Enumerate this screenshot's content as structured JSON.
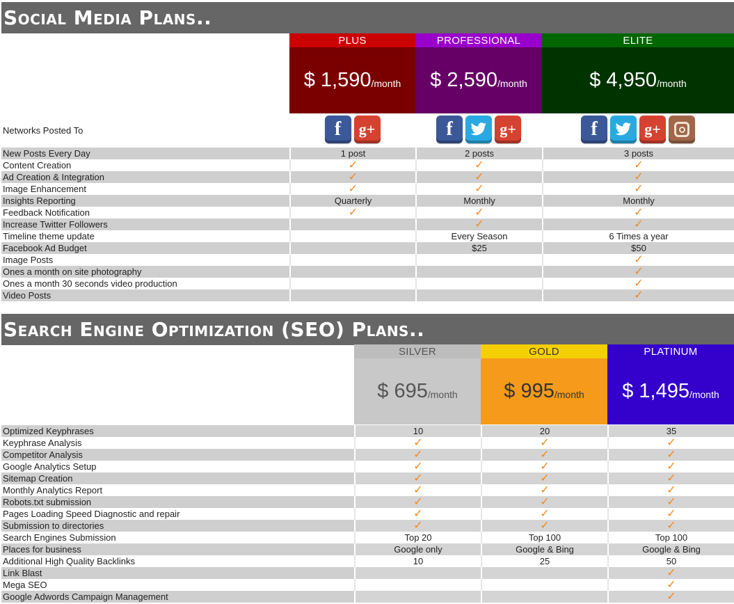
{
  "social": {
    "title": "Social Media Plans..",
    "plans": [
      {
        "name": "PLUS",
        "price": "$ 1,590",
        "unit": "/month",
        "name_bg": "#cc0000",
        "price_bg": "#7a0000"
      },
      {
        "name": "PROFESSIONAL",
        "price": "$ 2,590",
        "unit": "/month",
        "name_bg": "#9900cc",
        "price_bg": "#660066"
      },
      {
        "name": "ELITE",
        "price": "$ 4,950",
        "unit": "/month",
        "name_bg": "#006600",
        "price_bg": "#003300"
      }
    ],
    "networks_label": "Networks Posted To",
    "networks": [
      [
        "facebook-icon",
        "google-plus-icon"
      ],
      [
        "facebook-icon",
        "twitter-icon",
        "google-plus-icon"
      ],
      [
        "facebook-icon",
        "twitter-icon",
        "google-plus-icon",
        "instagram-icon"
      ]
    ],
    "rows": [
      {
        "label": "New Posts Every Day",
        "values": [
          "1 post",
          "2 posts",
          "3 posts"
        ]
      },
      {
        "label": "Content Creation",
        "values": [
          "✓",
          "✓",
          "✓"
        ]
      },
      {
        "label": "Ad Creation & Integration",
        "values": [
          "✓",
          "✓",
          "✓"
        ]
      },
      {
        "label": "Image Enhancement",
        "values": [
          "✓",
          "✓",
          "✓"
        ]
      },
      {
        "label": "Insights Reporting",
        "values": [
          "Quarterly",
          "Monthly",
          "Monthly"
        ]
      },
      {
        "label": "Feedback Notification",
        "values": [
          "✓",
          "✓",
          "✓"
        ]
      },
      {
        "label": "Increase Twitter Followers",
        "values": [
          "",
          "✓",
          "✓"
        ]
      },
      {
        "label": "Timeline theme update",
        "values": [
          "",
          "Every Season",
          "6 Times a year"
        ]
      },
      {
        "label": "Facebook Ad Budget",
        "values": [
          "",
          "$25",
          "$50"
        ]
      },
      {
        "label": "Image Posts",
        "values": [
          "",
          "",
          "✓"
        ]
      },
      {
        "label": "Ones a month on site photography",
        "values": [
          "",
          "",
          "✓"
        ]
      },
      {
        "label": "Ones a month 30 seconds video production",
        "values": [
          "",
          "",
          "✓"
        ]
      },
      {
        "label": "Video Posts",
        "values": [
          "",
          "",
          "✓"
        ]
      }
    ]
  },
  "seo": {
    "title": "Search Engine Optimization (SEO) Plans..",
    "plans": [
      {
        "name": "SILVER",
        "price": "$ 695",
        "unit": "/month",
        "name_bg": "#bdbdbd",
        "price_bg": "#c8c8c8",
        "fg": "#555555"
      },
      {
        "name": "GOLD",
        "price": "$ 995",
        "unit": "/month",
        "name_bg": "#f5d000",
        "price_bg": "#f59a1a",
        "fg": "#333333"
      },
      {
        "name": "PLATINUM",
        "price": "$ 1,495",
        "unit": "/month",
        "name_bg": "#3300cc",
        "price_bg": "#3300cc",
        "fg": "#ffffff"
      }
    ],
    "rows": [
      {
        "label": "Optimized Keyphrases",
        "values": [
          "10",
          "20",
          "35"
        ]
      },
      {
        "label": "Keyphrase Analysis",
        "values": [
          "✓",
          "✓",
          "✓"
        ]
      },
      {
        "label": "Competitor Analysis",
        "values": [
          "✓",
          "✓",
          "✓"
        ]
      },
      {
        "label": "Google Analytics Setup",
        "values": [
          "✓",
          "✓",
          "✓"
        ]
      },
      {
        "label": "Sitemap Creation",
        "values": [
          "✓",
          "✓",
          "✓"
        ]
      },
      {
        "label": "Monthly Analytics Report",
        "values": [
          "✓",
          "✓",
          "✓"
        ]
      },
      {
        "label": "Robots.txt submission",
        "values": [
          "✓",
          "✓",
          "✓"
        ]
      },
      {
        "label": "Pages Loading Speed Diagnostic and repair",
        "values": [
          "✓",
          "✓",
          "✓"
        ]
      },
      {
        "label": "Submission to directories",
        "values": [
          "✓",
          "✓",
          "✓"
        ]
      },
      {
        "label": "Search Engines Submission",
        "values": [
          "Top 20",
          "Top 100",
          "Top 100"
        ]
      },
      {
        "label": "Places for business",
        "values": [
          "Google only",
          "Google & Bing",
          "Google & Bing"
        ]
      },
      {
        "label": "Additional High Quality Backlinks",
        "values": [
          "10",
          "25",
          "50"
        ]
      },
      {
        "label": "Link Blast",
        "values": [
          "",
          "",
          "✓"
        ]
      },
      {
        "label": "Mega SEO",
        "values": [
          "",
          "",
          "✓"
        ]
      },
      {
        "label": "Google Adwords Campaign Management",
        "values": [
          "",
          "",
          "✓"
        ]
      }
    ]
  },
  "colors": {
    "check": "#f08a1c",
    "header_bar": "#666666",
    "row_shade": "#cfcfcf"
  }
}
